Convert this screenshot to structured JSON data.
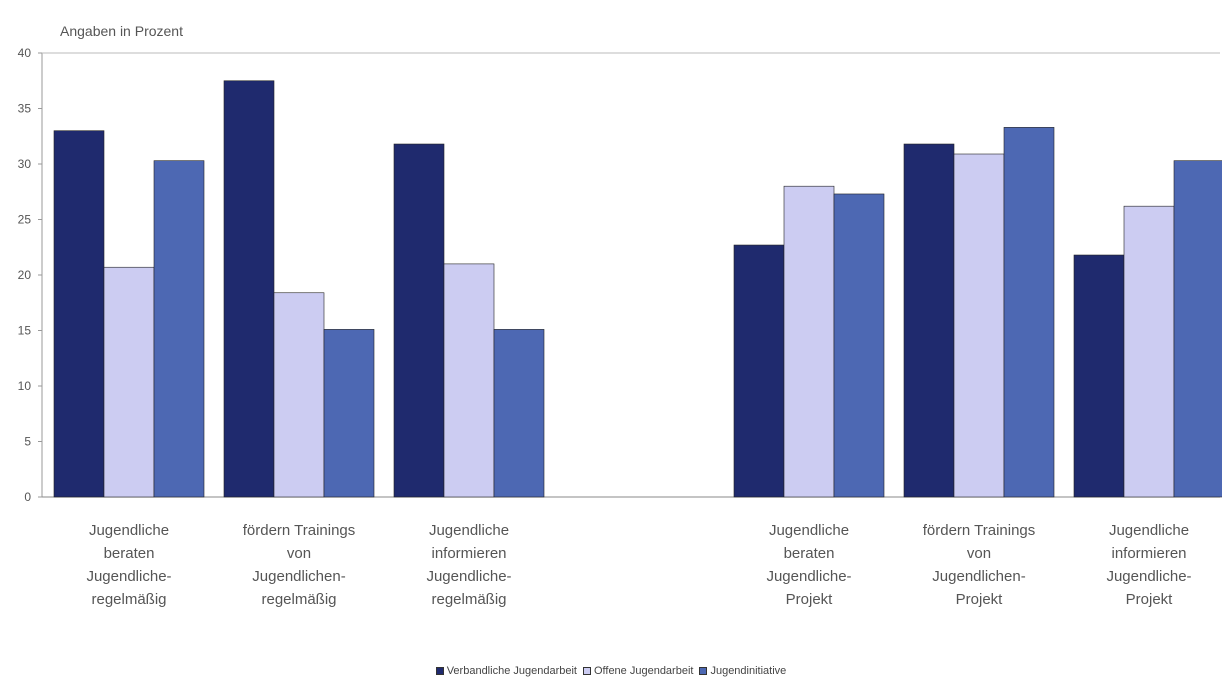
{
  "chart_data": {
    "type": "bar",
    "title": "",
    "unit_label": "Angaben in Prozent",
    "xlabel": "",
    "ylabel": "",
    "ylim": [
      0,
      40
    ],
    "yticks": [
      0,
      5,
      10,
      15,
      20,
      25,
      30,
      35,
      40
    ],
    "grid": false,
    "legend_position": "bottom",
    "categories": [
      [
        "Jugendliche",
        "beraten",
        "Jugendliche-",
        "regelmäßig"
      ],
      [
        "fördern Trainings",
        "von",
        "Jugendlichen-",
        "regelmäßig"
      ],
      [
        "Jugendliche",
        "informieren",
        "Jugendliche-",
        "regelmäßig"
      ],
      [],
      [
        "Jugendliche",
        "beraten",
        "Jugendliche-",
        "Projekt"
      ],
      [
        "fördern Trainings",
        "von",
        "Jugendlichen-",
        "Projekt"
      ],
      [
        "Jugendliche",
        "informieren",
        "Jugendliche-",
        "Projekt"
      ]
    ],
    "series": [
      {
        "name": "Verbandliche Jugendarbeit",
        "color": "#1f2a6e",
        "values": [
          33,
          37.5,
          31.8,
          null,
          22.7,
          31.8,
          21.8
        ]
      },
      {
        "name": "Offene Jugendarbeit",
        "color": "#ccccf2",
        "values": [
          20.7,
          18.4,
          21,
          null,
          28,
          30.9,
          26.2
        ]
      },
      {
        "name": "Jugendinitiative",
        "color": "#4d68b3",
        "values": [
          30.3,
          15.1,
          15.1,
          null,
          27.3,
          33.3,
          30.3
        ]
      }
    ]
  }
}
